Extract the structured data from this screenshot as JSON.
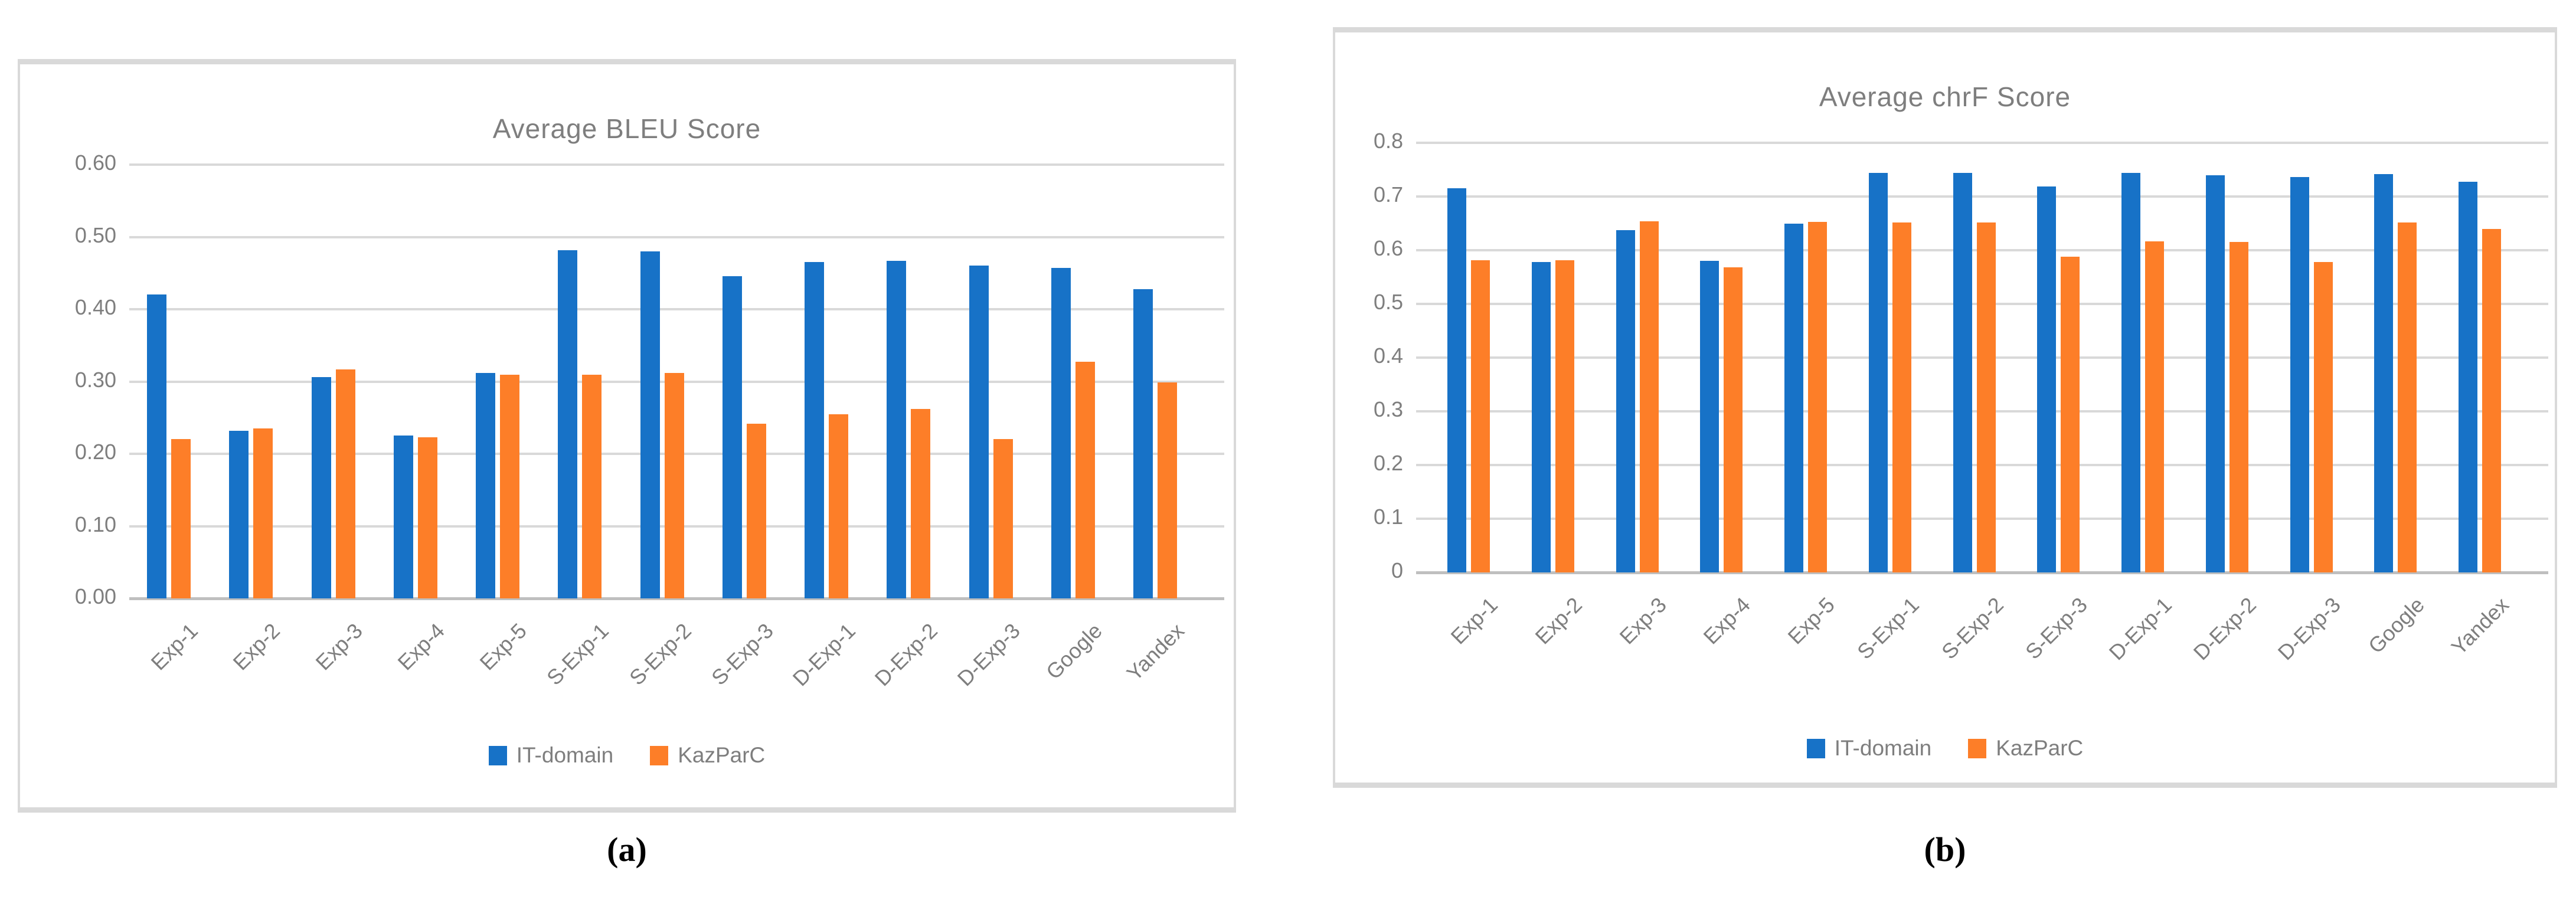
{
  "figure": {
    "caption_a": "(a)",
    "caption_b": "(b)"
  },
  "colors": {
    "series_blue": "#1772C7",
    "series_orange": "#FD7E28",
    "grid": "#D9D9D9",
    "axis_line": "#BFBFBF",
    "text_gray": "#7E7E7E",
    "panel_border": "#D9D9D9",
    "caption_black": "#000000"
  },
  "chart_data": [
    {
      "id": "bleu",
      "type": "bar",
      "title": "Average BLEU Score",
      "categories": [
        "Exp-1",
        "Exp-2",
        "Exp-3",
        "Exp-4",
        "Exp-5",
        "S-Exp-1",
        "S-Exp-2",
        "S-Exp-3",
        "D-Exp-1",
        "D-Exp-2",
        "D-Exp-3",
        "Google",
        "Yandex"
      ],
      "series": [
        {
          "name": "IT-domain",
          "color_key": "series_blue",
          "values": [
            0.42,
            0.232,
            0.306,
            0.225,
            0.312,
            0.482,
            0.48,
            0.446,
            0.465,
            0.467,
            0.46,
            0.457,
            0.428
          ]
        },
        {
          "name": "KazParC",
          "color_key": "series_orange",
          "values": [
            0.22,
            0.235,
            0.317,
            0.223,
            0.309,
            0.309,
            0.312,
            0.242,
            0.255,
            0.262,
            0.22,
            0.327,
            0.299
          ]
        }
      ],
      "ylim": [
        0,
        0.6
      ],
      "ytick_labels": [
        "0.00",
        "0.10",
        "0.20",
        "0.30",
        "0.40",
        "0.50",
        "0.60"
      ],
      "grid": true,
      "legend_position": "bottom"
    },
    {
      "id": "chrf",
      "type": "bar",
      "title": "Average chrF Score",
      "categories": [
        "Exp-1",
        "Exp-2",
        "Exp-3",
        "Exp-4",
        "Exp-5",
        "S-Exp-1",
        "S-Exp-2",
        "S-Exp-3",
        "D-Exp-1",
        "D-Exp-2",
        "D-Exp-3",
        "Google",
        "Yandex"
      ],
      "series": [
        {
          "name": "IT-domain",
          "color_key": "series_blue",
          "values": [
            0.715,
            0.578,
            0.637,
            0.58,
            0.649,
            0.744,
            0.744,
            0.719,
            0.744,
            0.74,
            0.736,
            0.742,
            0.728
          ]
        },
        {
          "name": "KazParC",
          "color_key": "series_orange",
          "values": [
            0.581,
            0.581,
            0.654,
            0.568,
            0.653,
            0.652,
            0.652,
            0.588,
            0.617,
            0.615,
            0.578,
            0.652,
            0.64
          ]
        }
      ],
      "ylim": [
        0,
        0.8
      ],
      "ytick_labels": [
        "0",
        "0.1",
        "0.2",
        "0.3",
        "0.4",
        "0.5",
        "0.6",
        "0.7",
        "0.8"
      ],
      "grid": true,
      "legend_position": "bottom"
    }
  ]
}
